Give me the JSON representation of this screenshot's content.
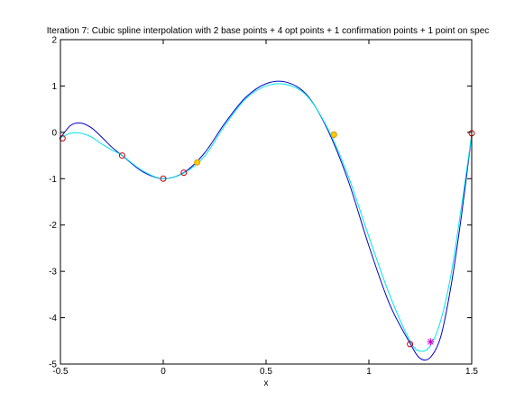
{
  "chart_data": {
    "type": "line",
    "title": "Iteration 7: Cubic spline interpolation with 2 base points + 4 opt points + 1 confirmation points + 1 point on spec",
    "xlabel": "x",
    "ylabel": "",
    "xlim": [
      -0.5,
      1.5
    ],
    "ylim": [
      -5,
      2
    ],
    "xticks": [
      -0.5,
      0,
      0.5,
      1,
      1.5
    ],
    "yticks": [
      -5,
      -4,
      -3,
      -2,
      -1,
      0,
      1,
      2
    ],
    "xtick_labels": [
      "-0.5",
      "0",
      "0.5",
      "1",
      "1.5"
    ],
    "ytick_labels": [
      "-5",
      "-4",
      "-3",
      "-2",
      "-1",
      "0",
      "1",
      "2"
    ],
    "grid": false,
    "series": [
      {
        "color": "#0000cc",
        "x": [
          -0.5,
          -0.45,
          -0.4,
          -0.35,
          -0.3,
          -0.25,
          -0.2,
          -0.1,
          0.0,
          0.1,
          0.2,
          0.3,
          0.4,
          0.5,
          0.6,
          0.7,
          0.8,
          0.9,
          1.0,
          1.1,
          1.2,
          1.25,
          1.3,
          1.35,
          1.4,
          1.45,
          1.5
        ],
        "y": [
          -0.12,
          0.15,
          0.2,
          0.1,
          -0.1,
          -0.32,
          -0.5,
          -0.85,
          -1.0,
          -0.87,
          -0.45,
          0.2,
          0.75,
          1.05,
          1.08,
          0.8,
          0.05,
          -1.05,
          -2.45,
          -3.7,
          -4.55,
          -4.88,
          -4.85,
          -4.4,
          -3.3,
          -1.8,
          -0.05
        ]
      },
      {
        "color": "#00e5e5",
        "x": [
          -0.5,
          -0.45,
          -0.4,
          -0.35,
          -0.3,
          -0.25,
          -0.2,
          -0.1,
          0.0,
          0.1,
          0.2,
          0.3,
          0.4,
          0.5,
          0.6,
          0.7,
          0.8,
          0.9,
          1.0,
          1.1,
          1.2,
          1.25,
          1.3,
          1.35,
          1.4,
          1.45,
          1.5
        ],
        "y": [
          -0.12,
          -0.02,
          -0.02,
          -0.1,
          -0.25,
          -0.38,
          -0.5,
          -0.83,
          -1.0,
          -0.88,
          -0.52,
          0.15,
          0.72,
          1.0,
          1.03,
          0.78,
          0.08,
          -0.95,
          -2.25,
          -3.5,
          -4.5,
          -4.72,
          -4.6,
          -4.05,
          -3.05,
          -1.6,
          -0.05
        ]
      }
    ],
    "markers": [
      {
        "kind": "red-circles",
        "color": "#cc0000",
        "x": [
          -0.49,
          -0.2,
          0.0,
          0.1,
          0.83,
          1.2,
          1.5
        ],
        "y": [
          -0.13,
          -0.5,
          -1.0,
          -0.87,
          -0.05,
          -4.57,
          -0.02
        ]
      },
      {
        "kind": "yellow-circles",
        "color": "#ffcc00",
        "x": [
          0.165,
          0.83
        ],
        "y": [
          -0.65,
          -0.05
        ]
      },
      {
        "kind": "star",
        "color": "#cc00cc",
        "x": [
          1.3
        ],
        "y": [
          -4.52
        ]
      }
    ]
  }
}
